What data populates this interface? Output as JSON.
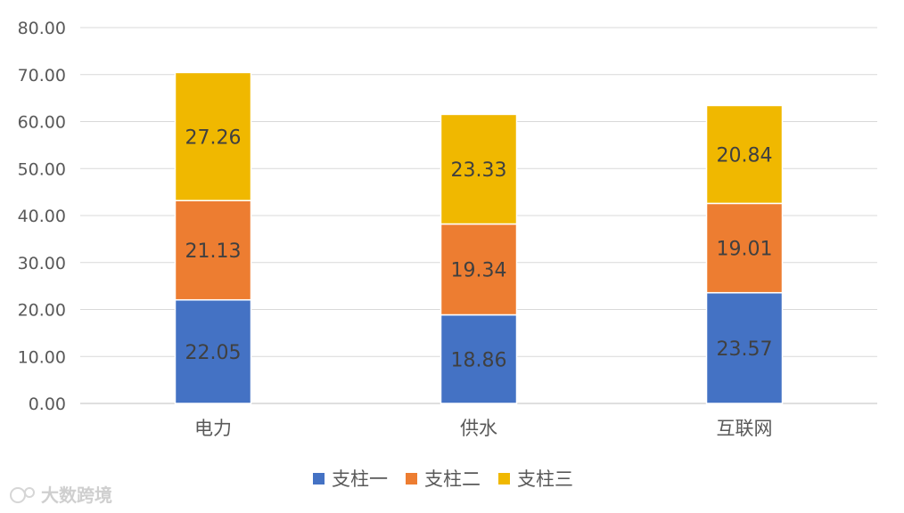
{
  "chart_data": {
    "type": "bar",
    "stacked": true,
    "categories": [
      "电力",
      "供水",
      "互联网"
    ],
    "series": [
      {
        "name": "支柱一",
        "color": "#4472C4",
        "values": [
          22.05,
          18.86,
          23.57
        ]
      },
      {
        "name": "支柱二",
        "color": "#ED7D31",
        "values": [
          21.13,
          19.34,
          19.01
        ]
      },
      {
        "name": "支柱三",
        "color": "#F0B800",
        "values": [
          27.26,
          23.33,
          20.84
        ]
      }
    ],
    "ylim": [
      0,
      80
    ],
    "yticks": [
      "0.00",
      "10.00",
      "20.00",
      "30.00",
      "40.00",
      "50.00",
      "60.00",
      "70.00",
      "80.00"
    ],
    "grid": true,
    "legend_position": "bottom"
  },
  "watermark": {
    "text": "大数跨境"
  }
}
